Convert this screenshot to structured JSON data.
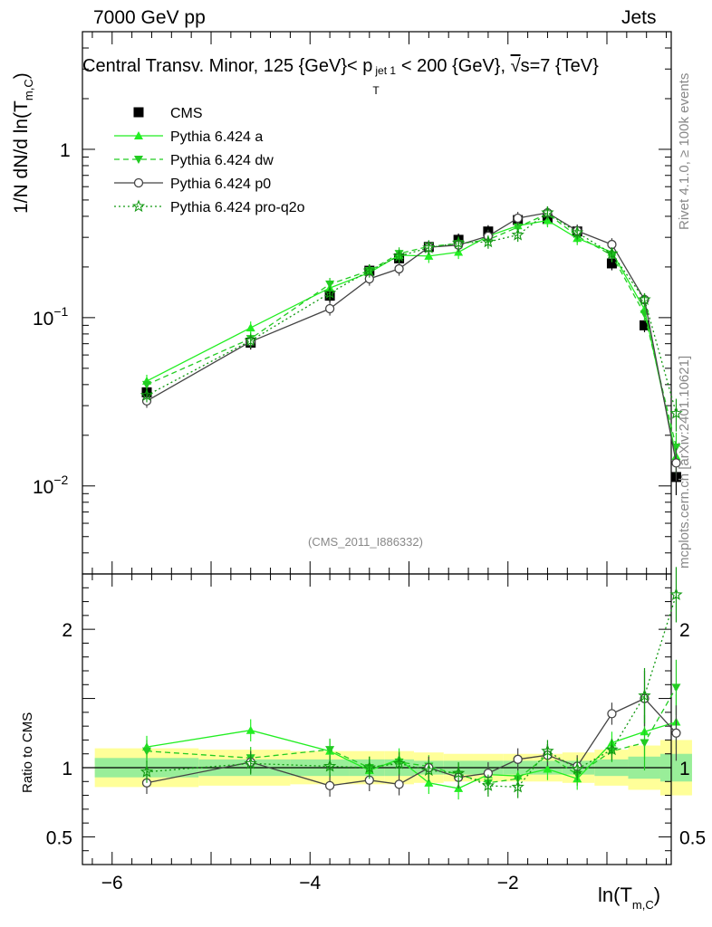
{
  "header": {
    "left": "7000 GeV pp",
    "right": "Jets"
  },
  "chart_data": [
    {
      "type": "line",
      "title": "Central Transv. Minor, 125 {GeV}< p_T^{jet 1} < 200 {GeV}, √s=7 {TeV}",
      "title_parts": {
        "pre": "Central Transv. Minor, 125 {GeV}< p",
        "sub": "T",
        "sup": "jet 1",
        "mid": " < 200 {GeV}, ",
        "sqrt": "√",
        "post": "s=7 {TeV}"
      },
      "ylabel": {
        "pre": "1/N    dN/d ln(T",
        "sub": "m,C",
        "post": ")"
      },
      "xlim": [
        -6.3,
        -0.35
      ],
      "ylim": [
        0.003,
        5.0
      ],
      "yscale": "log",
      "yticks": [
        {
          "value": 1,
          "label": "1"
        },
        {
          "value": 0.1,
          "label": "10",
          "exp": "−1"
        },
        {
          "value": 0.01,
          "label": "10",
          "exp": "−2"
        }
      ],
      "watermark": "(CMS_2011_I886332)",
      "x": [
        -5.65,
        -4.6,
        -3.8,
        -3.4,
        -3.1,
        -2.8,
        -2.5,
        -2.2,
        -1.9,
        -1.6,
        -1.3,
        -0.95,
        -0.62,
        -0.3
      ],
      "series": [
        {
          "name": "CMS",
          "color": "#000000",
          "values": [
            0.036,
            0.071,
            0.135,
            0.19,
            0.225,
            0.263,
            0.29,
            0.325,
            0.38,
            0.385,
            0.325,
            0.21,
            0.09,
            0.0113
          ]
        },
        {
          "name": "Pythia 6.424 a",
          "color": "#22ee22",
          "values": [
            0.042,
            0.087,
            0.15,
            0.185,
            0.235,
            0.232,
            0.245,
            0.305,
            0.352,
            0.378,
            0.296,
            0.245,
            0.112,
            0.015
          ]
        },
        {
          "name": "Pythia 6.424 dw",
          "color": "#22cc22",
          "values": [
            0.04,
            0.075,
            0.158,
            0.19,
            0.24,
            0.265,
            0.275,
            0.29,
            0.345,
            0.415,
            0.305,
            0.235,
            0.105,
            0.017
          ]
        },
        {
          "name": "Pythia 6.424 p0",
          "color": "#444444",
          "values": [
            0.032,
            0.072,
            0.113,
            0.17,
            0.195,
            0.262,
            0.27,
            0.305,
            0.39,
            0.42,
            0.328,
            0.272,
            0.128,
            0.0137
          ]
        },
        {
          "name": "Pythia 6.424 pro-q2o",
          "color": "#119911",
          "values": [
            0.0345,
            0.073,
            0.14,
            0.19,
            0.232,
            0.26,
            0.278,
            0.282,
            0.31,
            0.42,
            0.32,
            0.24,
            0.128,
            0.027
          ]
        }
      ],
      "legend": "top-left"
    },
    {
      "type": "line",
      "title": "",
      "ylabel": "Ratio to CMS",
      "xlabel": {
        "pre": "ln(T",
        "sub": "m,C",
        "post": ")"
      },
      "xlim": [
        -6.3,
        -0.35
      ],
      "ylim": [
        0.3,
        2.4
      ],
      "xticks": [
        {
          "value": -6,
          "label": "−6"
        },
        {
          "value": -4,
          "label": "−4"
        },
        {
          "value": -2,
          "label": "−2"
        }
      ],
      "yticks": [
        {
          "value": 0.5,
          "label": "0.5"
        },
        {
          "value": 1,
          "label": "1"
        },
        {
          "value": 2,
          "label": "2"
        }
      ],
      "band_outer": [
        0.14,
        0.13,
        0.12,
        0.12,
        0.12,
        0.11,
        0.1,
        0.1,
        0.1,
        0.1,
        0.11,
        0.13,
        0.16,
        0.2
      ],
      "band_inner": [
        0.07,
        0.06,
        0.06,
        0.06,
        0.06,
        0.05,
        0.05,
        0.05,
        0.05,
        0.05,
        0.05,
        0.06,
        0.08,
        0.1
      ],
      "series": [
        {
          "name": "Pythia 6.424 a",
          "color": "#22ee22",
          "values": [
            1.15,
            1.27,
            1.12,
            0.98,
            1.06,
            0.89,
            0.85,
            0.95,
            0.94,
            0.99,
            0.92,
            1.18,
            1.26,
            1.33
          ]
        },
        {
          "name": "Pythia 6.424 dw",
          "color": "#22cc22",
          "values": [
            1.12,
            1.07,
            1.13,
            1.0,
            1.04,
            1.01,
            0.95,
            0.89,
            0.92,
            1.09,
            0.95,
            1.12,
            1.18,
            1.58
          ]
        },
        {
          "name": "Pythia 6.424 p0",
          "color": "#444444",
          "values": [
            0.89,
            1.04,
            0.87,
            0.91,
            0.88,
            1.0,
            0.93,
            0.96,
            1.06,
            1.09,
            1.01,
            1.39,
            1.5,
            1.25
          ]
        },
        {
          "name": "Pythia 6.424 pro-q2o",
          "color": "#119911",
          "values": [
            0.97,
            1.03,
            1.01,
            1.0,
            1.03,
            0.98,
            0.96,
            0.87,
            0.86,
            1.12,
            0.99,
            1.13,
            1.52,
            2.25
          ]
        }
      ]
    }
  ],
  "side_labels": {
    "rivet": "Rivet 4.1.0, ≥ 100k events",
    "mcplots": "mcplots.cern.ch [arXiv:2401.10621]"
  }
}
